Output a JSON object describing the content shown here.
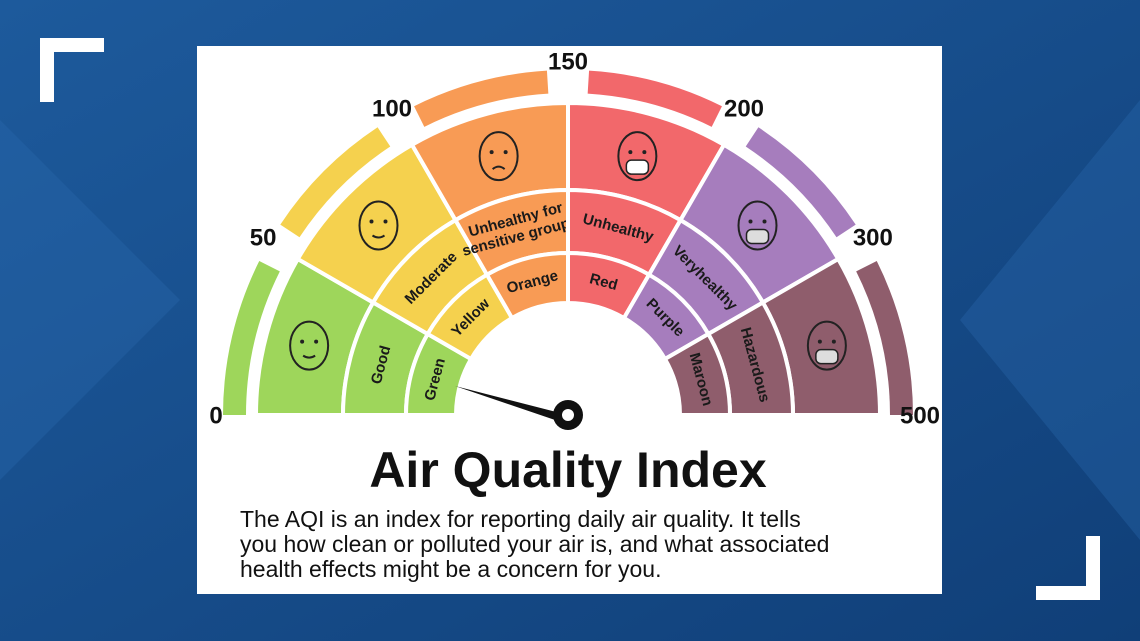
{
  "scale": [
    0,
    50,
    100,
    150,
    200,
    300,
    500
  ],
  "segments": [
    {
      "label_lines": [
        "Good"
      ],
      "color_name": "Green",
      "color": "#9ed65b"
    },
    {
      "label_lines": [
        "Moderate"
      ],
      "color_name": "Yellow",
      "color": "#f5d14e"
    },
    {
      "label_lines": [
        "Unhealthy for",
        "sensitive groups"
      ],
      "color_name": "Orange",
      "color": "#f89b55"
    },
    {
      "label_lines": [
        "Unhealthy"
      ],
      "color_name": "Red",
      "color": "#f2686b"
    },
    {
      "label_lines": [
        "Veryhealthy"
      ],
      "color_name": "Purple",
      "color": "#a67dbd"
    },
    {
      "label_lines": [
        "Hazardous"
      ],
      "color_name": "Maroon",
      "color": "#8f5d6c"
    }
  ],
  "title": "Air Quality Index",
  "description_lines": [
    "The AQI is an index for reporting daily air quality. It tells",
    "you how clean or polluted your air is, and what associated",
    "health effects might be a concern for you."
  ]
}
